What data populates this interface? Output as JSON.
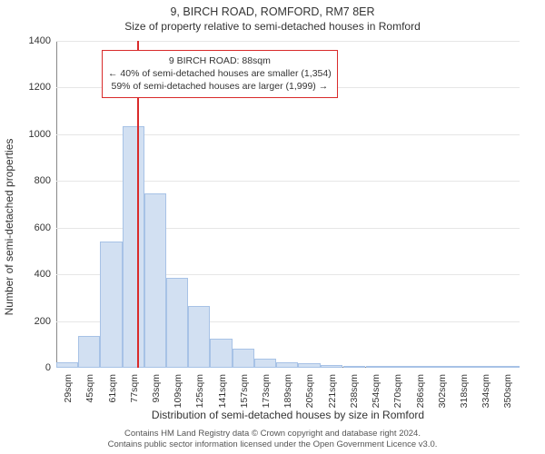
{
  "title": "9, BIRCH ROAD, ROMFORD, RM7 8ER",
  "subtitle": "Size of property relative to semi-detached houses in Romford",
  "xlabel": "Distribution of semi-detached houses by size in Romford",
  "ylabel": "Number of semi-detached properties",
  "footer_line1": "Contains HM Land Registry data © Crown copyright and database right 2024.",
  "footer_line2": "Contains public sector information licensed under the Open Government Licence v3.0.",
  "info_box": {
    "line1": "9 BIRCH ROAD: 88sqm",
    "line2": "← 40% of semi-detached houses are smaller (1,354)",
    "line3": "59% of semi-detached houses are larger (1,999) →"
  },
  "chart": {
    "type": "histogram",
    "ylim": [
      0,
      1400
    ],
    "ytick_step": 200,
    "yticks": [
      0,
      200,
      400,
      600,
      800,
      1000,
      1200,
      1400
    ],
    "xtick_labels": [
      "29sqm",
      "45sqm",
      "61sqm",
      "77sqm",
      "93sqm",
      "109sqm",
      "125sqm",
      "141sqm",
      "157sqm",
      "173sqm",
      "189sqm",
      "205sqm",
      "221sqm",
      "238sqm",
      "254sqm",
      "270sqm",
      "286sqm",
      "302sqm",
      "318sqm",
      "334sqm",
      "350sqm"
    ],
    "xtick_step_sqm": 16,
    "x_start_sqm": 29,
    "x_end_sqm": 350,
    "bar_fill": "#d2e0f2",
    "bar_stroke": "#a7c2e6",
    "grid_color": "#e6e6e6",
    "background_color": "#ffffff",
    "marker_color": "#d92b2b",
    "marker_value_sqm": 88,
    "bars": [
      {
        "x_sqm": 29,
        "count": 25
      },
      {
        "x_sqm": 45,
        "count": 135
      },
      {
        "x_sqm": 61,
        "count": 540
      },
      {
        "x_sqm": 77,
        "count": 1035
      },
      {
        "x_sqm": 93,
        "count": 745
      },
      {
        "x_sqm": 109,
        "count": 385
      },
      {
        "x_sqm": 125,
        "count": 265
      },
      {
        "x_sqm": 141,
        "count": 125
      },
      {
        "x_sqm": 157,
        "count": 80
      },
      {
        "x_sqm": 173,
        "count": 40
      },
      {
        "x_sqm": 189,
        "count": 25
      },
      {
        "x_sqm": 205,
        "count": 20
      },
      {
        "x_sqm": 221,
        "count": 10
      },
      {
        "x_sqm": 238,
        "count": 5
      },
      {
        "x_sqm": 254,
        "count": 4
      },
      {
        "x_sqm": 270,
        "count": 3
      },
      {
        "x_sqm": 286,
        "count": 2
      },
      {
        "x_sqm": 302,
        "count": 2
      },
      {
        "x_sqm": 318,
        "count": 1
      },
      {
        "x_sqm": 334,
        "count": 1
      },
      {
        "x_sqm": 350,
        "count": 1
      }
    ],
    "title_fontsize": 12.5,
    "subtitle_fontsize": 12,
    "label_fontsize": 12,
    "tick_fontsize": 11
  }
}
